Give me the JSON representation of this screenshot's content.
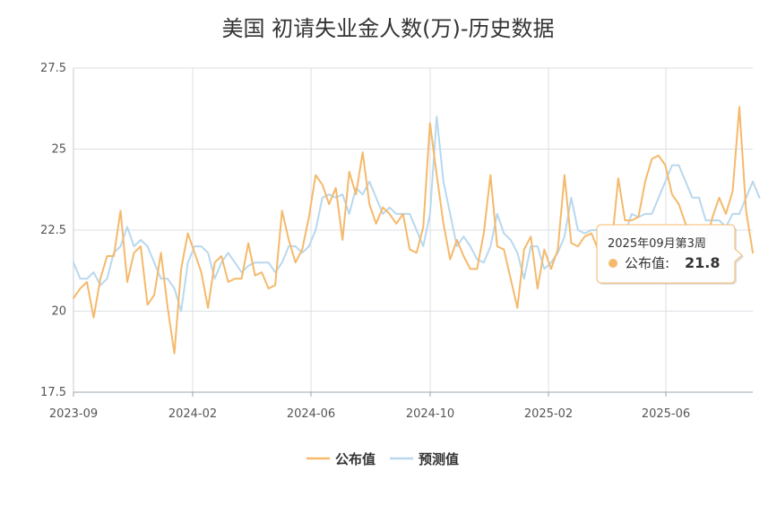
{
  "chart_data": {
    "type": "line",
    "title": "美国 初请失业金人数(万)-历史数据",
    "ylim": [
      17.5,
      27.5
    ],
    "y_ticks": [
      17.5,
      20,
      22.5,
      25,
      27.5
    ],
    "y_tick_labels": [
      "17.5",
      "20",
      "22.5",
      "25",
      "27.5"
    ],
    "x_ticks": [
      "2023-09",
      "2024-02",
      "2024-06",
      "2024-10",
      "2025-02",
      "2025-06"
    ],
    "grid": true,
    "legend_position": "bottom-center",
    "series": [
      {
        "name": "公布值",
        "color": "#f5b96b",
        "values": [
          20.4,
          20.7,
          20.9,
          19.8,
          21.0,
          21.7,
          21.7,
          23.1,
          20.9,
          21.8,
          22.0,
          20.2,
          20.5,
          21.8,
          20.1,
          18.7,
          21.3,
          22.4,
          21.8,
          21.2,
          20.1,
          21.5,
          21.7,
          20.9,
          21.0,
          21.0,
          22.1,
          21.1,
          21.2,
          20.7,
          20.8,
          23.1,
          22.2,
          21.5,
          21.9,
          22.9,
          24.2,
          23.9,
          23.3,
          23.8,
          22.2,
          24.3,
          23.6,
          24.9,
          23.3,
          22.7,
          23.2,
          23.0,
          22.7,
          23.0,
          21.9,
          21.8,
          22.6,
          25.8,
          24.2,
          22.7,
          21.6,
          22.2,
          21.7,
          21.3,
          21.3,
          22.4,
          24.2,
          22.0,
          21.9,
          21.0,
          20.1,
          21.9,
          22.3,
          20.7,
          21.9,
          21.3,
          21.9,
          24.2,
          22.1,
          22.0,
          22.3,
          22.4,
          21.9,
          22.3,
          22.0,
          24.1,
          22.8,
          22.8,
          22.9,
          24.0,
          24.7,
          24.8,
          24.5,
          23.6,
          23.3,
          22.7,
          22.3,
          22.2,
          22.1,
          22.9,
          23.5,
          23.0,
          23.7,
          26.3,
          23.1,
          21.8
        ]
      },
      {
        "name": "预测值",
        "color": "#b8d8ee",
        "values": [
          21.5,
          21.0,
          21.0,
          21.2,
          20.8,
          21.0,
          21.8,
          22.0,
          22.6,
          22.0,
          22.2,
          22.0,
          21.5,
          21.0,
          21.0,
          20.7,
          20.0,
          21.5,
          22.0,
          22.0,
          21.8,
          21.0,
          21.5,
          21.8,
          21.5,
          21.2,
          21.4,
          21.5,
          21.5,
          21.5,
          21.2,
          21.5,
          22.0,
          22.0,
          21.8,
          22.0,
          22.5,
          23.5,
          23.6,
          23.5,
          23.6,
          23.0,
          23.8,
          23.6,
          24.0,
          23.5,
          23.0,
          23.2,
          23.0,
          23.0,
          23.0,
          22.5,
          22.0,
          23.0,
          26.0,
          24.0,
          23.0,
          22.0,
          22.3,
          22.0,
          21.6,
          21.5,
          22.0,
          23.0,
          22.4,
          22.2,
          21.8,
          21.0,
          22.0,
          22.0,
          21.3,
          21.5,
          21.8,
          22.3,
          23.5,
          22.5,
          22.4,
          22.5,
          22.5,
          22.4,
          22.3,
          22.3,
          22.4,
          23.0,
          22.9,
          23.0,
          23.0,
          23.5,
          24.0,
          24.5,
          24.5,
          24.0,
          23.5,
          23.5,
          22.8,
          22.8,
          22.8,
          22.6,
          23.0,
          23.0,
          23.5,
          24.0,
          23.5
        ]
      }
    ],
    "tooltip": {
      "title": "2025年09月第3周",
      "series_name": "公布值",
      "value_text": "21.8"
    }
  }
}
